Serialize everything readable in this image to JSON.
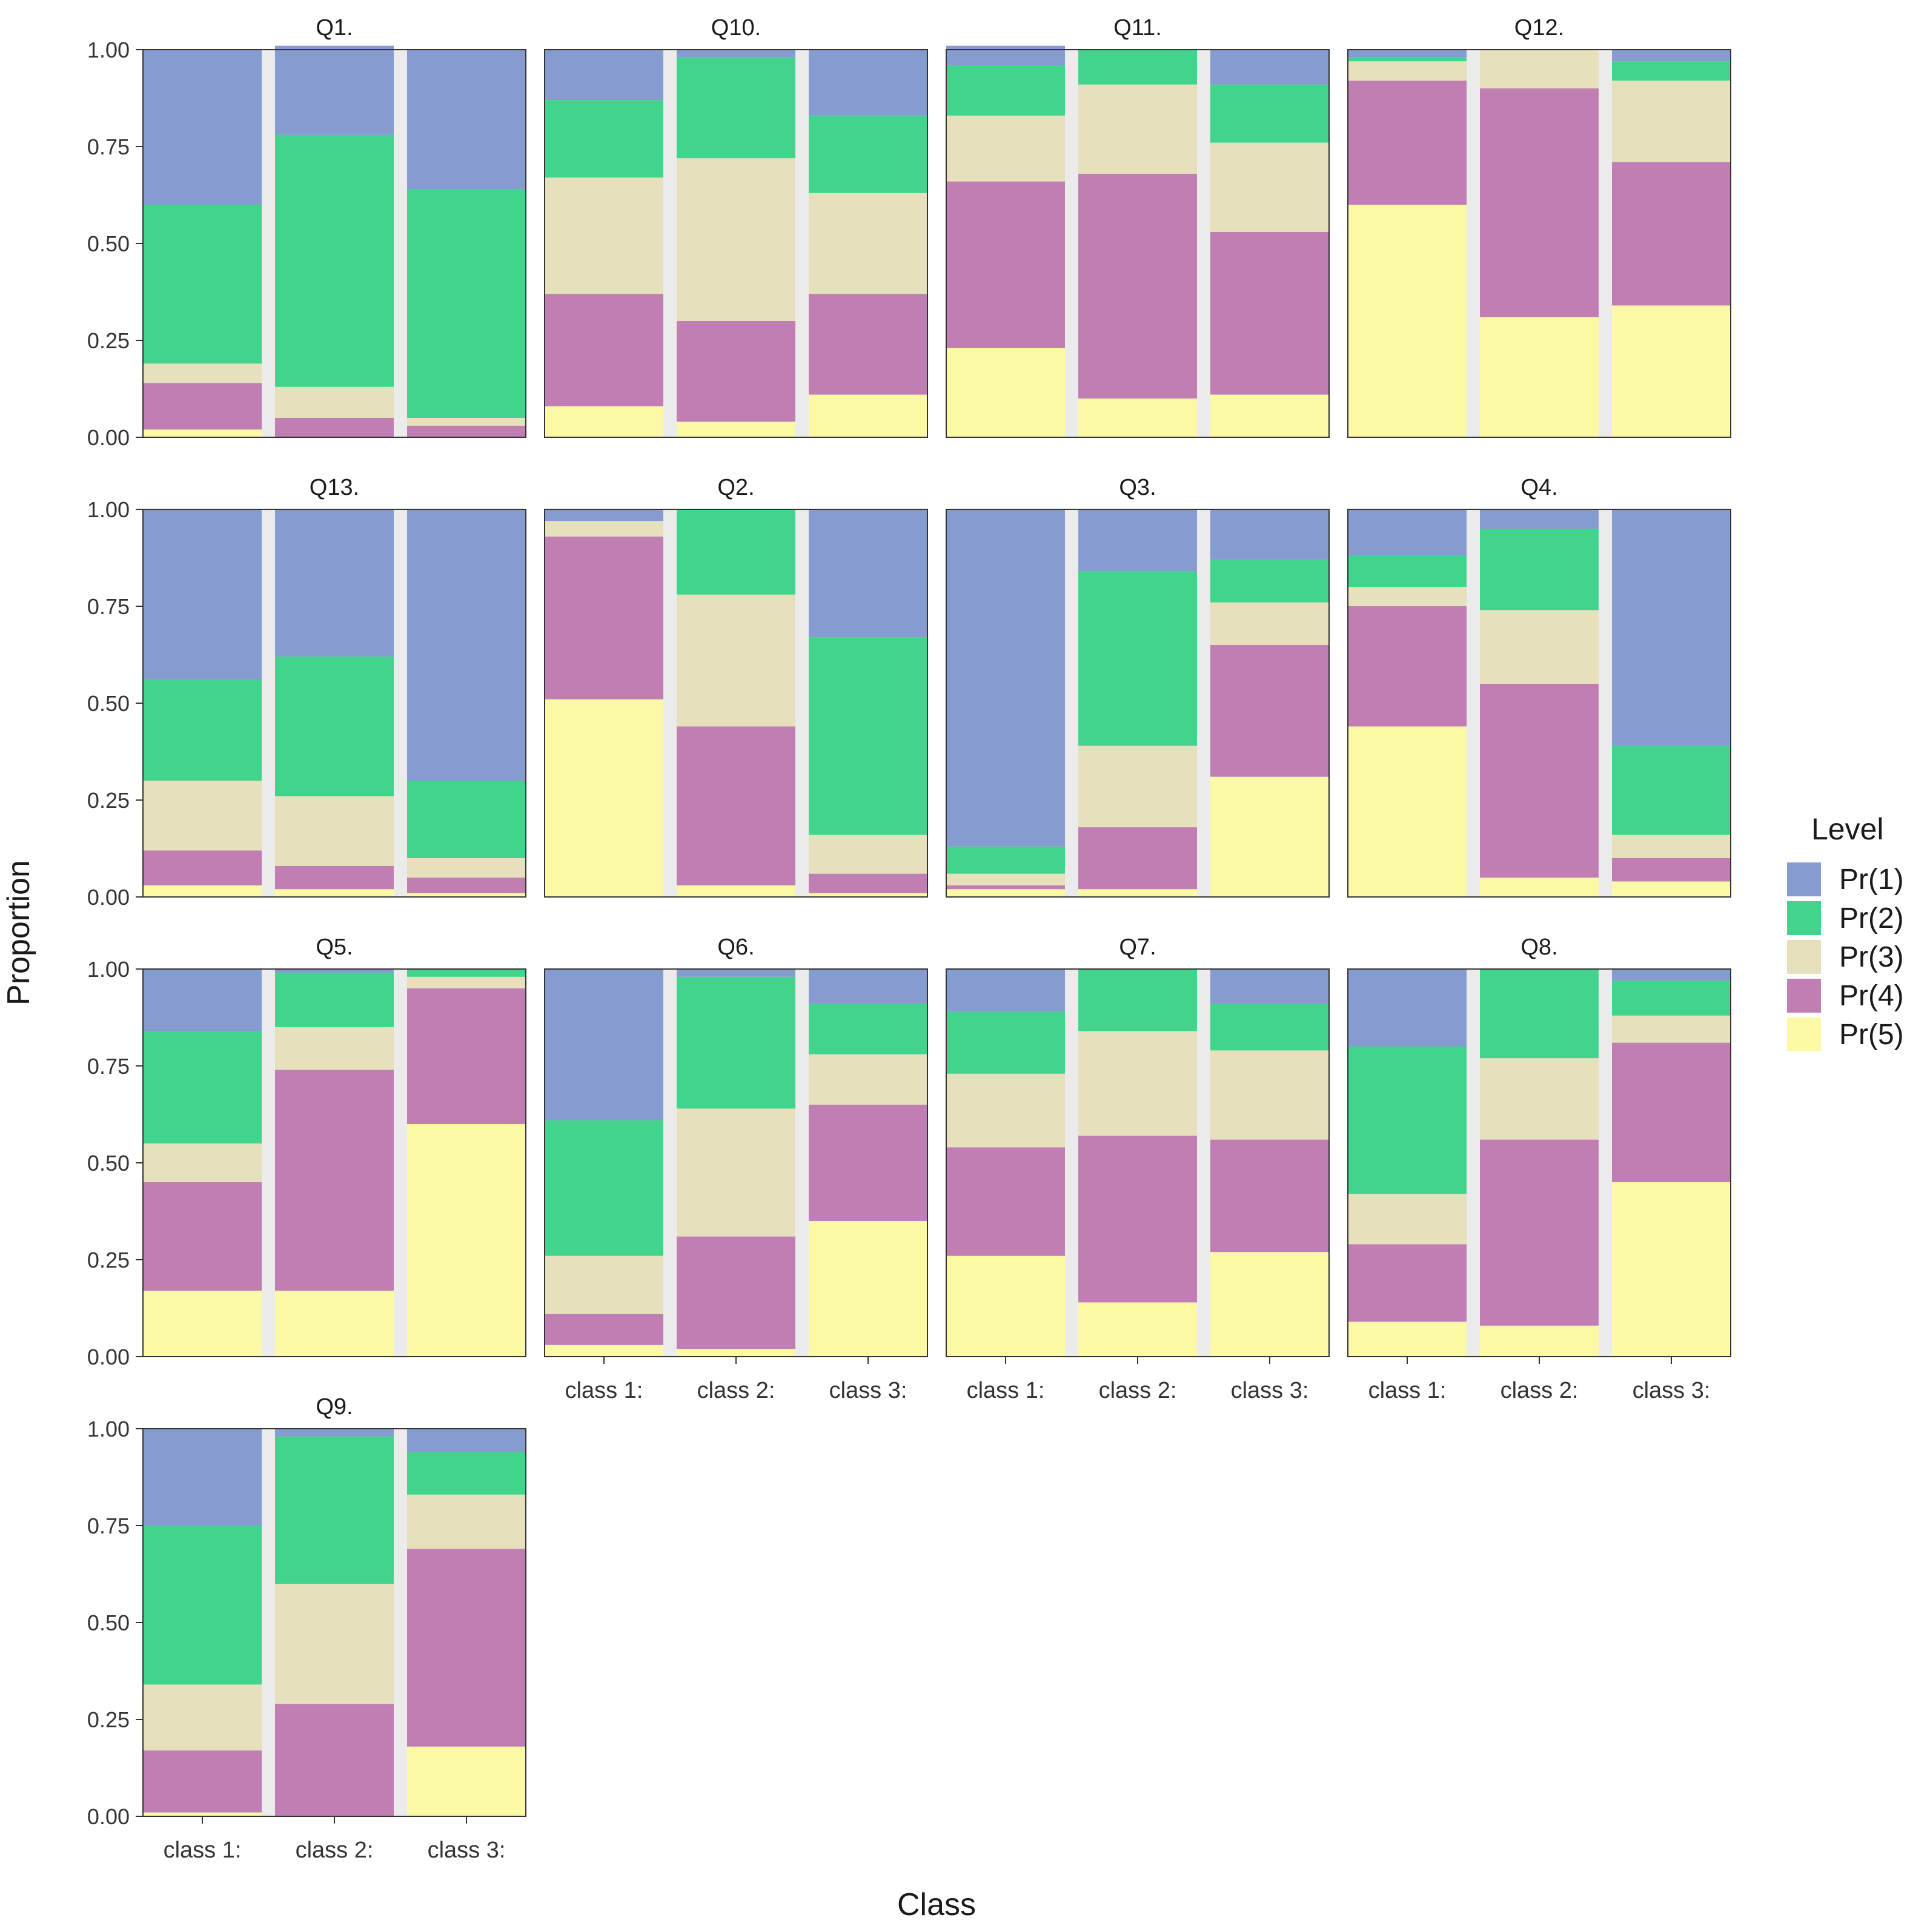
{
  "chart_data": {
    "type": "bar",
    "stacked": true,
    "xlabel": "Class",
    "ylabel": "Proportion",
    "ylim": [
      0,
      1
    ],
    "y_ticks": [
      "0.00",
      "0.25",
      "0.50",
      "0.75",
      "1.00"
    ],
    "categories": [
      "class 1:",
      "class 2:",
      "class 3:"
    ],
    "legend": {
      "title": "Level",
      "position": "right",
      "items": [
        {
          "label": "Pr(1)",
          "color": "#869CD0"
        },
        {
          "label": "Pr(2)",
          "color": "#42D48C"
        },
        {
          "label": "Pr(3)",
          "color": "#E6E1BC"
        },
        {
          "label": "Pr(4)",
          "color": "#C07EB3"
        },
        {
          "label": "Pr(5)",
          "color": "#FBF9A6"
        }
      ]
    },
    "stack_order_bottom_to_top": [
      "Pr(5)",
      "Pr(4)",
      "Pr(3)",
      "Pr(2)",
      "Pr(1)"
    ],
    "panels": [
      {
        "title": "Q1.",
        "values": [
          [
            0.4,
            0.41,
            0.05,
            0.12,
            0.02
          ],
          [
            0.23,
            0.65,
            0.08,
            0.05,
            0.0
          ],
          [
            0.36,
            0.59,
            0.02,
            0.03,
            0.0
          ]
        ]
      },
      {
        "title": "Q10.",
        "values": [
          [
            0.13,
            0.2,
            0.3,
            0.29,
            0.08
          ],
          [
            0.02,
            0.26,
            0.42,
            0.26,
            0.04
          ],
          [
            0.17,
            0.2,
            0.26,
            0.26,
            0.11
          ]
        ]
      },
      {
        "title": "Q11.",
        "values": [
          [
            0.05,
            0.13,
            0.17,
            0.43,
            0.23
          ],
          [
            0.0,
            0.09,
            0.23,
            0.58,
            0.1
          ],
          [
            0.09,
            0.15,
            0.23,
            0.42,
            0.11
          ]
        ]
      },
      {
        "title": "Q12.",
        "values": [
          [
            0.02,
            0.01,
            0.05,
            0.32,
            0.6
          ],
          [
            0.0,
            0.0,
            0.1,
            0.59,
            0.31
          ],
          [
            0.03,
            0.05,
            0.21,
            0.37,
            0.34
          ]
        ]
      },
      {
        "title": "Q13.",
        "values": [
          [
            0.44,
            0.26,
            0.18,
            0.09,
            0.03
          ],
          [
            0.38,
            0.36,
            0.18,
            0.06,
            0.02
          ],
          [
            0.7,
            0.2,
            0.05,
            0.04,
            0.01
          ]
        ]
      },
      {
        "title": "Q2.",
        "values": [
          [
            0.03,
            0.0,
            0.04,
            0.42,
            0.51
          ],
          [
            0.0,
            0.22,
            0.34,
            0.41,
            0.03
          ],
          [
            0.33,
            0.51,
            0.1,
            0.05,
            0.01
          ]
        ]
      },
      {
        "title": "Q3.",
        "values": [
          [
            0.87,
            0.07,
            0.03,
            0.01,
            0.02
          ],
          [
            0.16,
            0.45,
            0.21,
            0.16,
            0.02
          ],
          [
            0.13,
            0.11,
            0.11,
            0.34,
            0.31
          ]
        ]
      },
      {
        "title": "Q4.",
        "values": [
          [
            0.12,
            0.08,
            0.05,
            0.31,
            0.44
          ],
          [
            0.05,
            0.21,
            0.19,
            0.5,
            0.05
          ],
          [
            0.61,
            0.23,
            0.06,
            0.06,
            0.04
          ]
        ]
      },
      {
        "title": "Q5.",
        "values": [
          [
            0.16,
            0.29,
            0.1,
            0.28,
            0.17
          ],
          [
            0.01,
            0.14,
            0.11,
            0.57,
            0.17
          ],
          [
            0.0,
            0.02,
            0.03,
            0.35,
            0.6
          ]
        ]
      },
      {
        "title": "Q6.",
        "values": [
          [
            0.39,
            0.35,
            0.15,
            0.08,
            0.03
          ],
          [
            0.02,
            0.34,
            0.33,
            0.29,
            0.02
          ],
          [
            0.09,
            0.13,
            0.13,
            0.3,
            0.35
          ]
        ]
      },
      {
        "title": "Q7.",
        "values": [
          [
            0.11,
            0.16,
            0.19,
            0.28,
            0.26
          ],
          [
            0.0,
            0.16,
            0.27,
            0.43,
            0.14
          ],
          [
            0.09,
            0.12,
            0.23,
            0.29,
            0.27
          ]
        ]
      },
      {
        "title": "Q8.",
        "values": [
          [
            0.2,
            0.38,
            0.13,
            0.2,
            0.09
          ],
          [
            0.0,
            0.23,
            0.21,
            0.48,
            0.08
          ],
          [
            0.03,
            0.09,
            0.07,
            0.36,
            0.45
          ]
        ]
      },
      {
        "title": "Q9.",
        "values": [
          [
            0.25,
            0.41,
            0.17,
            0.16,
            0.01
          ],
          [
            0.02,
            0.38,
            0.31,
            0.29,
            0.0
          ],
          [
            0.06,
            0.11,
            0.14,
            0.51,
            0.18
          ]
        ]
      }
    ],
    "grid": false
  }
}
